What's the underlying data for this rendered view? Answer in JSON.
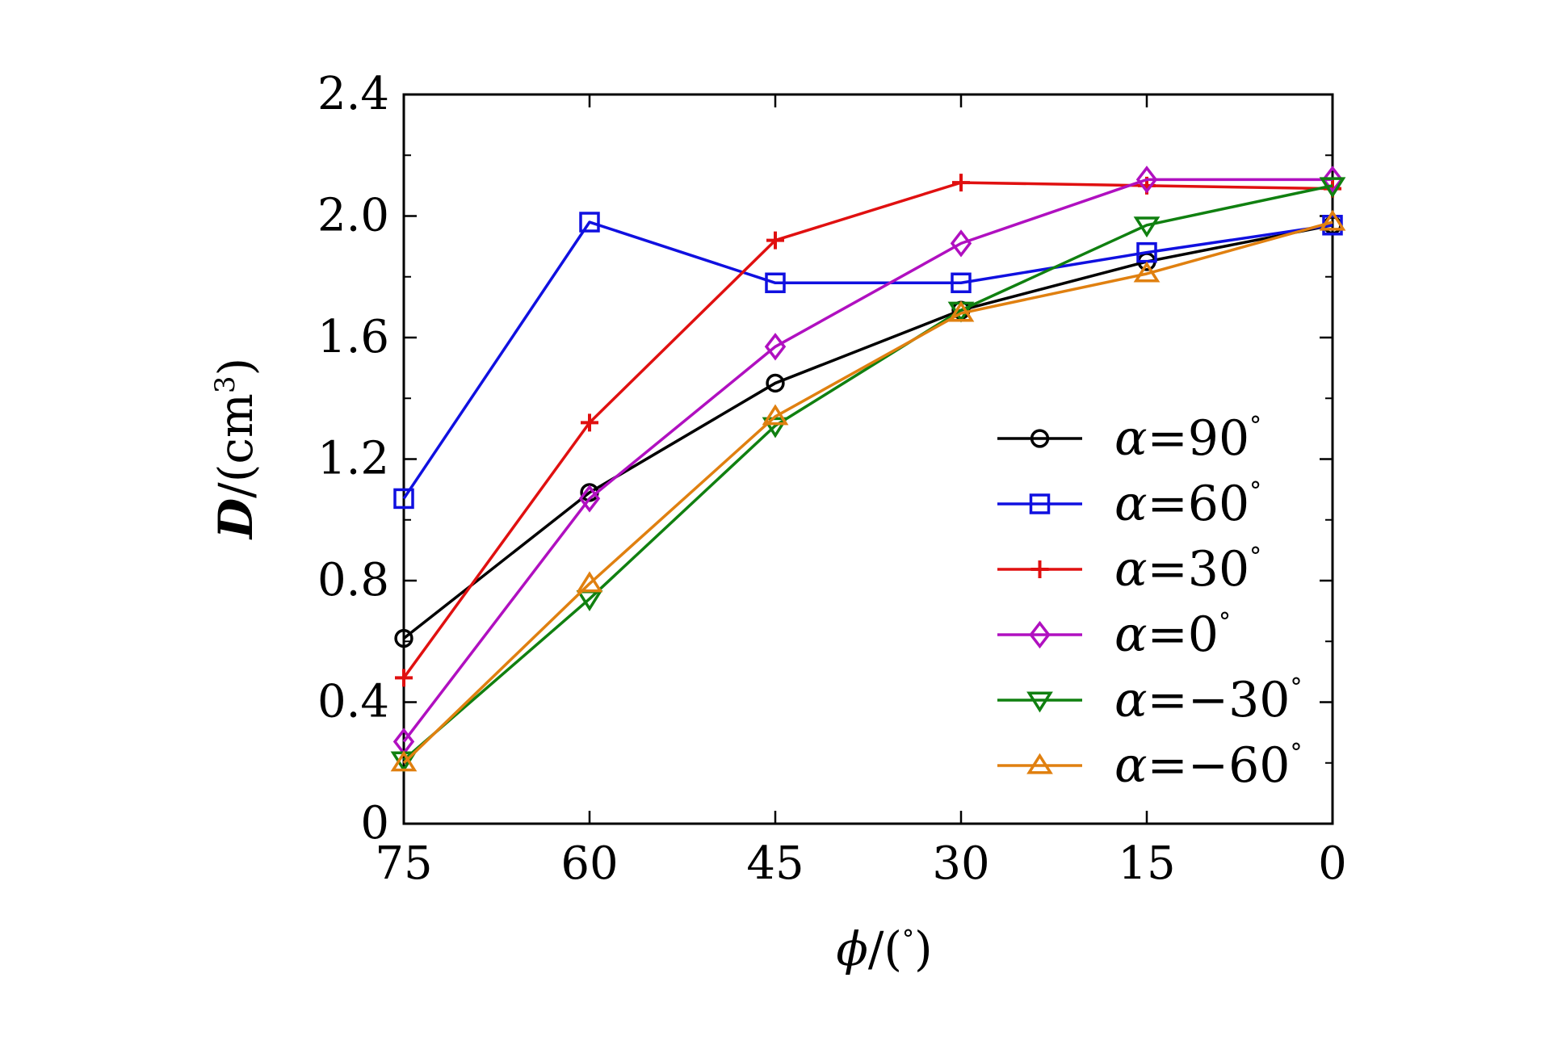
{
  "chart_data": {
    "type": "line",
    "title": "",
    "x": [
      75,
      60,
      45,
      30,
      15,
      0
    ],
    "x_tick_labels": [
      "75",
      "60",
      "45",
      "30",
      "15",
      "0"
    ],
    "xlim": [
      75,
      0
    ],
    "x_reversed": true,
    "xlabel": {
      "symbol": "ϕ",
      "rest": "/(",
      "degree": "°",
      "close": ")"
    },
    "ylabel": {
      "symbol": "D",
      "rest": "/(cm",
      "sup": "3",
      "close": ")"
    },
    "ylim": [
      0,
      2.4
    ],
    "y_ticks": [
      0,
      0.4,
      0.8,
      1.2,
      1.6,
      2.0,
      2.4
    ],
    "y_tick_labels": [
      "0",
      "0.4",
      "0.8",
      "1.2",
      "1.6",
      "2.0",
      "2.4"
    ],
    "grid": false,
    "legend_position": "bottom-right",
    "series": [
      {
        "name": "α=90°",
        "symbol": "α",
        "value_text": "=90",
        "degree": "°",
        "color": "#000000",
        "marker": "circle",
        "values": [
          0.61,
          1.09,
          1.45,
          1.69,
          1.85,
          1.97
        ]
      },
      {
        "name": "α=60°",
        "symbol": "α",
        "value_text": "=60",
        "degree": "°",
        "color": "#1010e0",
        "marker": "square",
        "values": [
          1.07,
          1.98,
          1.78,
          1.78,
          1.88,
          1.97
        ]
      },
      {
        "name": "α=30°",
        "symbol": "α",
        "value_text": "=30",
        "degree": "°",
        "color": "#e01010",
        "marker": "plus",
        "values": [
          0.48,
          1.32,
          1.92,
          2.11,
          2.1,
          2.09
        ]
      },
      {
        "name": "α=0°",
        "symbol": "α",
        "value_text": "=0",
        "degree": "°",
        "color": "#b010c0",
        "marker": "diamond",
        "values": [
          0.27,
          1.07,
          1.57,
          1.91,
          2.12,
          2.12
        ]
      },
      {
        "name": "α=−30°",
        "symbol": "α",
        "value_text": "=−30",
        "degree": "°",
        "color": "#108010",
        "marker": "triangle-down",
        "values": [
          0.21,
          0.74,
          1.31,
          1.69,
          1.97,
          2.1
        ]
      },
      {
        "name": "α=−60°",
        "symbol": "α",
        "value_text": "=−60",
        "degree": "°",
        "color": "#e08010",
        "marker": "triangle-up",
        "values": [
          0.2,
          0.79,
          1.34,
          1.68,
          1.81,
          1.98
        ]
      }
    ]
  }
}
